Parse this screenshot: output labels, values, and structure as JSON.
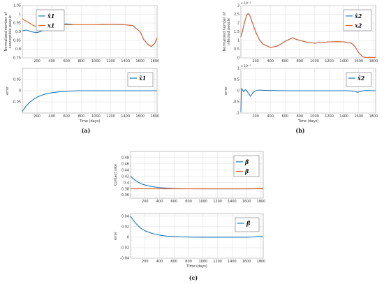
{
  "colors": {
    "blue": "#1f77b4",
    "orange": "#e0622a",
    "grid": "#dcdcdc",
    "frame": "#9a9a9a"
  },
  "chart_data": [
    {
      "type": "line",
      "ylabel": "Normalized number of susceptible people",
      "xlabel": "",
      "xlim": [
        0,
        1830
      ],
      "ylim": [
        0.75,
        1.05
      ],
      "xticks": [
        200,
        400,
        600,
        800,
        1000,
        1200,
        1400,
        1600,
        1800
      ],
      "yticks": [
        0.75,
        0.8,
        0.85,
        0.9,
        0.95,
        1,
        1.05
      ],
      "ytick_labels": [
        "0.75",
        "0.8",
        "0.85",
        "0.9",
        "0.95",
        "1",
        "1.05"
      ],
      "xtick_labels": [
        "200",
        "400",
        "600",
        "800",
        "1000",
        "1200",
        "1400",
        "1600",
        "1800"
      ],
      "grid": true,
      "legend": "top-left",
      "series": [
        {
          "name": "x̂1",
          "color": "#1f77b4",
          "x": [
            0,
            60,
            120,
            200,
            300,
            400,
            500,
            600,
            700,
            800,
            1000,
            1200,
            1400,
            1500,
            1600,
            1650,
            1700,
            1750,
            1800,
            1830
          ],
          "y": [
            0.905,
            0.91,
            0.9,
            0.895,
            0.91,
            0.925,
            0.94,
            0.945,
            0.94,
            0.94,
            0.94,
            0.942,
            0.94,
            0.935,
            0.9,
            0.855,
            0.83,
            0.815,
            0.835,
            0.865
          ]
        },
        {
          "name": "x1",
          "color": "#e0622a",
          "x": [
            0,
            30,
            80,
            150,
            250,
            350,
            450,
            550,
            650,
            750,
            800,
            1000,
            1200,
            1400,
            1500,
            1600,
            1650,
            1700,
            1750,
            1800,
            1830
          ],
          "y": [
            0.975,
            0.965,
            0.955,
            0.935,
            0.925,
            0.93,
            0.938,
            0.942,
            0.94,
            0.94,
            0.94,
            0.94,
            0.942,
            0.94,
            0.935,
            0.9,
            0.855,
            0.83,
            0.815,
            0.835,
            0.865
          ]
        }
      ]
    },
    {
      "type": "line",
      "ylabel": "Normalized number of infected people",
      "xlabel": "",
      "exponent": "x 10⁻³",
      "xlim": [
        0,
        1830
      ],
      "ylim": [
        0,
        3.0
      ],
      "xticks": [
        200,
        400,
        600,
        800,
        1000,
        1200,
        1400,
        1600,
        1800
      ],
      "yticks": [
        0,
        0.5,
        1,
        1.5,
        2,
        2.5,
        3
      ],
      "ytick_labels": [
        "0",
        "0.5",
        "1",
        "1.5",
        "2",
        "2.5",
        "3"
      ],
      "xtick_labels": [
        "200",
        "400",
        "600",
        "800",
        "1000",
        "1200",
        "1400",
        "1600",
        "1800"
      ],
      "grid": true,
      "legend": "top-right",
      "series": [
        {
          "name": "x̂2",
          "color": "#1f77b4",
          "x": [
            0,
            20,
            50,
            80,
            100,
            120,
            150,
            200,
            250,
            300,
            400,
            500,
            600,
            700,
            800,
            900,
            1000,
            1100,
            1200,
            1300,
            1400,
            1500,
            1550,
            1600,
            1650,
            1700,
            1750,
            1800,
            1830
          ],
          "y": [
            1.2,
            1.5,
            2.05,
            2.45,
            2.55,
            2.45,
            2.1,
            1.5,
            1.05,
            0.8,
            0.6,
            0.68,
            0.95,
            1.15,
            1.0,
            0.9,
            0.85,
            0.88,
            0.92,
            0.93,
            0.92,
            0.85,
            0.65,
            0.3,
            0.08,
            0.02,
            0.03,
            0.02,
            0.03
          ]
        },
        {
          "name": "x2",
          "color": "#e0622a",
          "x": [
            0,
            20,
            50,
            80,
            100,
            120,
            150,
            200,
            250,
            300,
            400,
            500,
            600,
            700,
            800,
            900,
            1000,
            1100,
            1200,
            1300,
            1400,
            1500,
            1550,
            1600,
            1650,
            1700,
            1750,
            1800,
            1830
          ],
          "y": [
            1.2,
            1.5,
            2.05,
            2.45,
            2.55,
            2.45,
            2.1,
            1.5,
            1.05,
            0.8,
            0.6,
            0.68,
            0.95,
            1.15,
            1.0,
            0.9,
            0.85,
            0.88,
            0.92,
            0.93,
            0.92,
            0.85,
            0.65,
            0.3,
            0.08,
            0.02,
            0.03,
            0.02,
            0.03
          ]
        }
      ]
    },
    {
      "type": "line",
      "ylabel": "error",
      "xlabel": "Time (days)",
      "xlim": [
        0,
        1830
      ],
      "ylim": [
        -0.1,
        0.1
      ],
      "xticks": [
        200,
        400,
        600,
        800,
        1000,
        1200,
        1400,
        1600,
        1800
      ],
      "yticks": [
        -0.05,
        0,
        0.05
      ],
      "ytick_labels": [
        "-0.05",
        "0",
        "0.05"
      ],
      "xtick_labels": [
        "200",
        "400",
        "600",
        "800",
        "1000",
        "1200",
        "1400",
        "1600",
        "1800"
      ],
      "grid": true,
      "legend": "top-right",
      "series": [
        {
          "name": "x̃1",
          "color": "#1f77b4",
          "x": [
            0,
            50,
            100,
            150,
            200,
            250,
            300,
            400,
            500,
            600,
            700,
            800,
            1000,
            1200,
            1400,
            1600,
            1800,
            1830
          ],
          "y": [
            -0.092,
            -0.069,
            -0.052,
            -0.039,
            -0.029,
            -0.022,
            -0.016,
            -0.009,
            -0.005,
            -0.003,
            -0.001,
            0,
            0,
            0,
            0,
            0,
            0,
            0
          ]
        }
      ]
    },
    {
      "type": "line",
      "ylabel": "error",
      "xlabel": "Time (days)",
      "exponent": "x 10⁻³",
      "xlim": [
        0,
        1830
      ],
      "ylim": [
        -1,
        1
      ],
      "xticks": [
        200,
        400,
        600,
        800,
        1000,
        1200,
        1400,
        1600,
        1800
      ],
      "yticks": [
        -1,
        -0.5,
        0,
        0.5,
        1
      ],
      "ytick_labels": [
        "-1",
        "-0.5",
        "0",
        "0.5",
        "1"
      ],
      "xtick_labels": [
        "200",
        "400",
        "600",
        "800",
        "1000",
        "1200",
        "1400",
        "1600",
        "1800"
      ],
      "grid": true,
      "legend": "top-right",
      "series": [
        {
          "name": "x̃2",
          "color": "#1f77b4",
          "x": [
            0,
            5,
            10,
            20,
            40,
            60,
            80,
            100,
            130,
            160,
            200,
            250,
            300,
            400,
            600,
            800,
            1000,
            1200,
            1400,
            1500,
            1550,
            1580,
            1620,
            1660,
            1700,
            1800,
            1830
          ],
          "y": [
            -0.95,
            -0.3,
            0.1,
            0.05,
            -0.05,
            0.05,
            0.0,
            -0.1,
            -0.25,
            -0.1,
            0.0,
            0.03,
            0.02,
            0.01,
            0.0,
            0.0,
            0.0,
            0.0,
            0.0,
            -0.01,
            -0.03,
            -0.07,
            -0.04,
            0.0,
            0.01,
            0.0,
            0.0
          ]
        }
      ]
    },
    {
      "type": "line",
      "ylabel": "Contact rate",
      "xlabel": "",
      "xlim": [
        0,
        1830
      ],
      "ylim": [
        0.35,
        0.5
      ],
      "xticks": [
        200,
        400,
        600,
        800,
        1000,
        1200,
        1400,
        1600,
        1800
      ],
      "yticks": [
        0.36,
        0.38,
        0.4,
        0.42,
        0.44,
        0.46,
        0.48
      ],
      "ytick_labels": [
        "0.36",
        "0.38",
        "0.4",
        "0.42",
        "0.44",
        "0.46",
        "0.48"
      ],
      "xtick_labels": [
        "200",
        "400",
        "600",
        "800",
        "1000",
        "1200",
        "1400",
        "1600",
        "1800"
      ],
      "grid": true,
      "legend": "top-right",
      "series": [
        {
          "name": "β̂",
          "color": "#1f77b4",
          "x": [
            0,
            50,
            100,
            150,
            200,
            300,
            400,
            500,
            600,
            700,
            800,
            1000,
            1200,
            1400,
            1600,
            1700,
            1750,
            1800,
            1830
          ],
          "y": [
            0.42,
            0.41,
            0.402,
            0.396,
            0.392,
            0.387,
            0.384,
            0.382,
            0.381,
            0.3805,
            0.3802,
            0.38,
            0.38,
            0.38,
            0.38,
            0.3805,
            0.381,
            0.381,
            0.3808
          ]
        },
        {
          "name": "β",
          "color": "#e0622a",
          "x": [
            0,
            1830
          ],
          "y": [
            0.38,
            0.38
          ]
        }
      ]
    },
    {
      "type": "line",
      "ylabel": "error",
      "xlabel": "Time (days)",
      "xlim": [
        0,
        1830
      ],
      "ylim": [
        -0.04,
        0.045
      ],
      "xticks": [
        200,
        400,
        600,
        800,
        1000,
        1200,
        1400,
        1600,
        1800
      ],
      "yticks": [
        -0.04,
        -0.02,
        0,
        0.02,
        0.04
      ],
      "ytick_labels": [
        "-0.04",
        "-0.02",
        "0",
        "0.02",
        "0.04"
      ],
      "xtick_labels": [
        "200",
        "400",
        "600",
        "800",
        "1000",
        "1200",
        "1400",
        "1600",
        "1800"
      ],
      "grid": true,
      "legend": "top-right",
      "series": [
        {
          "name": "β̃",
          "color": "#1f77b4",
          "x": [
            0,
            50,
            100,
            150,
            200,
            300,
            400,
            500,
            600,
            700,
            800,
            1000,
            1200,
            1400,
            1600,
            1700,
            1750,
            1800,
            1830
          ],
          "y": [
            0.04,
            0.03,
            0.022,
            0.016,
            0.012,
            0.007,
            0.004,
            0.002,
            0.001,
            0.0005,
            0.0002,
            0,
            0,
            0,
            0,
            0.0005,
            0.001,
            0.001,
            0.0008
          ]
        }
      ]
    }
  ],
  "captions": [
    "(a)",
    "(b)",
    "(c)"
  ]
}
